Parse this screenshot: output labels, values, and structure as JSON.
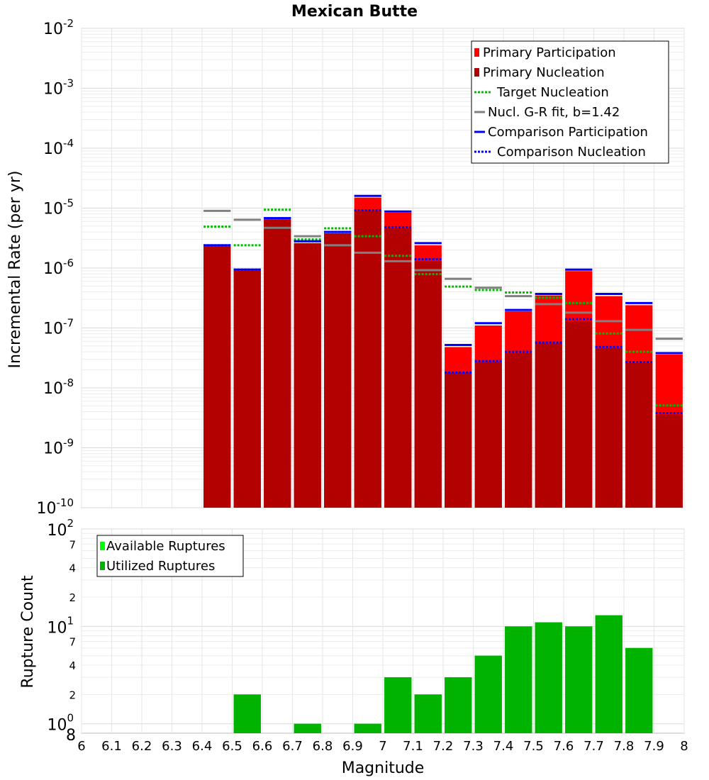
{
  "chart_data": [
    {
      "type": "bar",
      "title": "Mexican Butte",
      "xlabel": "",
      "ylabel": "Incremental Rate (per yr)",
      "y_scale": "log",
      "ylim": [
        1e-10,
        0.01
      ],
      "xlim": [
        6,
        8
      ],
      "y_ticks": [
        {
          "base": "10",
          "exp": "-10"
        },
        {
          "base": "10",
          "exp": "-9"
        },
        {
          "base": "10",
          "exp": "-8"
        },
        {
          "base": "10",
          "exp": "-7"
        },
        {
          "base": "10",
          "exp": "-6"
        },
        {
          "base": "10",
          "exp": "-5"
        },
        {
          "base": "10",
          "exp": "-4"
        },
        {
          "base": "10",
          "exp": "-3"
        },
        {
          "base": "10",
          "exp": "-2"
        }
      ],
      "grid": true,
      "legend_placement": "top-right",
      "bar_width": 0.09,
      "x": [
        6.45,
        6.55,
        6.65,
        6.75,
        6.85,
        6.95,
        7.05,
        7.15,
        7.25,
        7.35,
        7.45,
        7.55,
        7.65,
        7.75,
        7.85,
        7.95
      ],
      "series": [
        {
          "name": "Primary Participation",
          "style": "bar",
          "color": "#ff0000",
          "values": [
            2.3e-06,
            9e-07,
            6.5e-06,
            2.6e-06,
            3.8e-06,
            1.5e-05,
            8.4e-06,
            2.4e-06,
            4.8e-08,
            1.1e-07,
            1.9e-07,
            3.5e-07,
            8.9e-07,
            3.4e-07,
            2.4e-07,
            3.6e-08
          ]
        },
        {
          "name": "Primary Nucleation",
          "style": "bar",
          "color": "#b30000",
          "values": [
            2.3e-06,
            9e-07,
            6.5e-06,
            2.6e-06,
            3.8e-06,
            9e-06,
            4.6e-06,
            1.3e-06,
            1.8e-08,
            2.7e-08,
            3.8e-08,
            5.5e-08,
            1.3e-07,
            4.6e-08,
            2.6e-08,
            3.6e-09
          ]
        },
        {
          "name": "Target Nucleation",
          "style": "dotted",
          "color": "#00bb00",
          "values": [
            4.9e-06,
            2.4e-06,
            9.4e-06,
            3e-06,
            4.6e-06,
            3.4e-06,
            1.6e-06,
            7.9e-07,
            4.9e-07,
            4.3e-07,
            3.9e-07,
            3.2e-07,
            2.6e-07,
            8.1e-08,
            4e-08,
            5.1e-09
          ]
        },
        {
          "name": "Nucl. G-R fit, b=1.42",
          "style": "solid",
          "color": "#808080",
          "values": [
            9e-06,
            6.4e-06,
            4.7e-06,
            3.4e-06,
            2.4e-06,
            1.8e-06,
            1.3e-06,
            9.2e-07,
            6.6e-07,
            4.7e-07,
            3.4e-07,
            2.5e-07,
            1.8e-07,
            1.3e-07,
            9.3e-08,
            6.6e-08
          ]
        },
        {
          "name": "Comparison Participation",
          "style": "solid",
          "color": "#0000ff",
          "values": [
            2.4e-06,
            9.4e-07,
            6.8e-06,
            2.8e-06,
            4e-06,
            1.6e-05,
            8.8e-06,
            2.6e-06,
            5.2e-08,
            1.2e-07,
            2e-07,
            3.7e-07,
            9.4e-07,
            3.7e-07,
            2.6e-07,
            3.8e-08
          ]
        },
        {
          "name": "Comparison Nucleation",
          "style": "dotted",
          "color": "#0000ff",
          "values": [
            2.4e-06,
            9.4e-07,
            6.8e-06,
            2.8e-06,
            4e-06,
            9.2e-06,
            4.8e-06,
            1.4e-06,
            1.8e-08,
            2.8e-08,
            4e-08,
            5.7e-08,
            1.4e-07,
            4.8e-08,
            2.7e-08,
            3.8e-09
          ]
        }
      ]
    },
    {
      "type": "bar",
      "title": "",
      "xlabel": "Magnitude",
      "ylabel": "Rupture Count",
      "y_scale": "log",
      "ylim": [
        0.8,
        100
      ],
      "xlim": [
        6,
        8
      ],
      "x_ticks": [
        "6",
        "6.1",
        "6.2",
        "6.3",
        "6.4",
        "6.5",
        "6.6",
        "6.7",
        "6.8",
        "6.9",
        "7",
        "7.1",
        "7.2",
        "7.3",
        "7.4",
        "7.5",
        "7.6",
        "7.7",
        "7.8",
        "7.9",
        "8"
      ],
      "y_major_ticks": [
        {
          "base": "10",
          "exp": "0"
        },
        {
          "base": "10",
          "exp": "1"
        },
        {
          "base": "10",
          "exp": "2"
        }
      ],
      "y_minor_ticks": [
        "8",
        "2",
        "4",
        "7",
        "2",
        "4",
        "7"
      ],
      "grid": true,
      "legend_placement": "top-left",
      "bar_width": 0.09,
      "x": [
        6.55,
        6.75,
        6.95,
        7.05,
        7.15,
        7.25,
        7.35,
        7.45,
        7.55,
        7.65,
        7.75,
        7.85
      ],
      "series": [
        {
          "name": "Available Ruptures",
          "style": "bar",
          "color": "#00ff00",
          "values": [
            2,
            1,
            1,
            3,
            2,
            3,
            5,
            10,
            11,
            10,
            13,
            6
          ]
        },
        {
          "name": "Utilized Ruptures",
          "style": "bar",
          "color": "#00b300",
          "values": [
            2,
            1,
            1,
            3,
            2,
            3,
            5,
            10,
            11,
            10,
            13,
            6
          ]
        }
      ]
    }
  ]
}
